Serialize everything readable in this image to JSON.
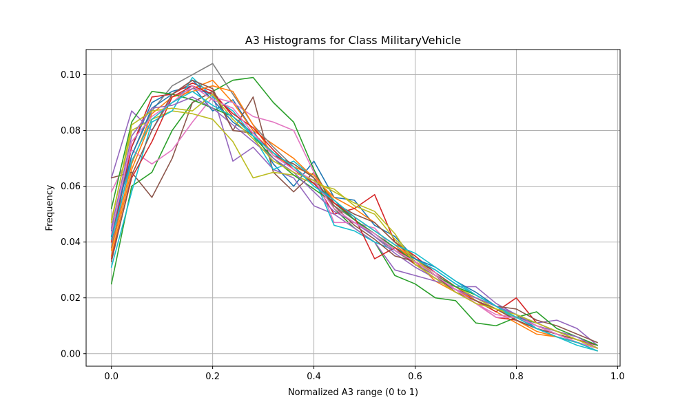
{
  "chart_data": {
    "type": "line",
    "title": "A3 Histograms for Class MilitaryVehicle",
    "xlabel": "Normalized A3 range (0 to 1)",
    "ylabel": "Frequency",
    "xlim": [
      -0.05,
      1.005
    ],
    "ylim": [
      -0.0045,
      0.109
    ],
    "x_ticks": [
      0.0,
      0.2,
      0.4,
      0.6,
      0.8,
      1.0
    ],
    "x_tick_labels": [
      "0.0",
      "0.2",
      "0.4",
      "0.6",
      "0.8",
      "1.0"
    ],
    "y_ticks": [
      0.0,
      0.02,
      0.04,
      0.06,
      0.08,
      0.1
    ],
    "y_tick_labels": [
      "0.00",
      "0.02",
      "0.04",
      "0.06",
      "0.08",
      "0.10"
    ],
    "grid": true,
    "x": [
      0.0,
      0.04,
      0.08,
      0.12,
      0.16,
      0.2,
      0.24,
      0.28,
      0.32,
      0.36,
      0.4,
      0.44,
      0.48,
      0.52,
      0.56,
      0.6,
      0.64,
      0.68,
      0.72,
      0.76,
      0.8,
      0.84,
      0.88,
      0.92,
      0.96
    ],
    "series": [
      {
        "color": "#1f77b4",
        "values": [
          0.042,
          0.074,
          0.09,
          0.094,
          0.096,
          0.087,
          0.091,
          0.08,
          0.068,
          0.06,
          0.069,
          0.056,
          0.055,
          0.046,
          0.042,
          0.034,
          0.03,
          0.025,
          0.021,
          0.017,
          0.013,
          0.01,
          0.007,
          0.004,
          0.002
        ]
      },
      {
        "color": "#ff7f0e",
        "values": [
          0.035,
          0.066,
          0.084,
          0.09,
          0.095,
          0.098,
          0.09,
          0.08,
          0.075,
          0.07,
          0.063,
          0.056,
          0.052,
          0.047,
          0.04,
          0.033,
          0.026,
          0.022,
          0.019,
          0.015,
          0.011,
          0.007,
          0.006,
          0.004,
          0.002
        ]
      },
      {
        "color": "#2ca02c",
        "values": [
          0.025,
          0.06,
          0.065,
          0.08,
          0.09,
          0.094,
          0.098,
          0.099,
          0.09,
          0.083,
          0.066,
          0.052,
          0.045,
          0.04,
          0.028,
          0.025,
          0.02,
          0.019,
          0.011,
          0.01,
          0.013,
          0.011,
          0.008,
          0.006,
          0.003
        ]
      },
      {
        "color": "#d62728",
        "values": [
          0.04,
          0.074,
          0.092,
          0.093,
          0.097,
          0.094,
          0.085,
          0.079,
          0.072,
          0.066,
          0.062,
          0.05,
          0.052,
          0.057,
          0.04,
          0.035,
          0.029,
          0.024,
          0.019,
          0.015,
          0.02,
          0.011,
          0.008,
          0.005,
          0.003
        ]
      },
      {
        "color": "#9467bd",
        "values": [
          0.063,
          0.087,
          0.08,
          0.092,
          0.095,
          0.093,
          0.069,
          0.074,
          0.066,
          0.063,
          0.053,
          0.05,
          0.045,
          0.04,
          0.03,
          0.028,
          0.026,
          0.024,
          0.024,
          0.018,
          0.014,
          0.011,
          0.012,
          0.009,
          0.003
        ]
      },
      {
        "color": "#8c564b",
        "values": [
          0.063,
          0.065,
          0.056,
          0.07,
          0.09,
          0.094,
          0.08,
          0.092,
          0.065,
          0.058,
          0.065,
          0.054,
          0.05,
          0.047,
          0.04,
          0.034,
          0.029,
          0.024,
          0.02,
          0.017,
          0.016,
          0.012,
          0.01,
          0.007,
          0.004
        ]
      },
      {
        "color": "#e377c2",
        "values": [
          0.058,
          0.073,
          0.068,
          0.073,
          0.083,
          0.092,
          0.09,
          0.085,
          0.083,
          0.08,
          0.065,
          0.047,
          0.047,
          0.045,
          0.037,
          0.033,
          0.029,
          0.022,
          0.018,
          0.014,
          0.013,
          0.01,
          0.007,
          0.004,
          0.002
        ]
      },
      {
        "color": "#7f7f7f",
        "values": [
          0.038,
          0.071,
          0.087,
          0.096,
          0.1,
          0.104,
          0.093,
          0.082,
          0.074,
          0.067,
          0.061,
          0.053,
          0.048,
          0.042,
          0.037,
          0.032,
          0.028,
          0.023,
          0.019,
          0.016,
          0.012,
          0.009,
          0.006,
          0.004,
          0.002
        ]
      },
      {
        "color": "#bcbd22",
        "values": [
          0.048,
          0.08,
          0.084,
          0.087,
          0.086,
          0.084,
          0.076,
          0.063,
          0.065,
          0.064,
          0.061,
          0.059,
          0.053,
          0.05,
          0.041,
          0.034,
          0.028,
          0.024,
          0.02,
          0.016,
          0.013,
          0.01,
          0.007,
          0.005,
          0.002
        ]
      },
      {
        "color": "#17becf",
        "values": [
          0.031,
          0.058,
          0.083,
          0.087,
          0.099,
          0.092,
          0.087,
          0.078,
          0.066,
          0.069,
          0.063,
          0.046,
          0.044,
          0.04,
          0.037,
          0.034,
          0.03,
          0.025,
          0.021,
          0.017,
          0.012,
          0.009,
          0.006,
          0.003,
          0.001
        ]
      },
      {
        "color": "#1f77b4",
        "values": [
          0.044,
          0.071,
          0.088,
          0.093,
          0.098,
          0.091,
          0.083,
          0.078,
          0.072,
          0.066,
          0.061,
          0.055,
          0.048,
          0.043,
          0.038,
          0.034,
          0.031,
          0.026,
          0.022,
          0.017,
          0.014,
          0.009,
          0.006,
          0.004,
          0.002
        ]
      },
      {
        "color": "#ff7f0e",
        "values": [
          0.037,
          0.068,
          0.086,
          0.092,
          0.094,
          0.096,
          0.094,
          0.082,
          0.071,
          0.067,
          0.064,
          0.055,
          0.049,
          0.044,
          0.039,
          0.033,
          0.028,
          0.023,
          0.019,
          0.016,
          0.012,
          0.008,
          0.006,
          0.004,
          0.001
        ]
      },
      {
        "color": "#2ca02c",
        "values": [
          0.052,
          0.083,
          0.094,
          0.093,
          0.091,
          0.088,
          0.085,
          0.078,
          0.07,
          0.064,
          0.059,
          0.054,
          0.048,
          0.043,
          0.038,
          0.033,
          0.028,
          0.024,
          0.021,
          0.017,
          0.013,
          0.015,
          0.009,
          0.006,
          0.003
        ]
      },
      {
        "color": "#d62728",
        "values": [
          0.034,
          0.063,
          0.076,
          0.092,
          0.096,
          0.093,
          0.086,
          0.081,
          0.073,
          0.066,
          0.061,
          0.054,
          0.049,
          0.034,
          0.038,
          0.032,
          0.027,
          0.023,
          0.018,
          0.013,
          0.012,
          0.009,
          0.007,
          0.004,
          0.002
        ]
      },
      {
        "color": "#9467bd",
        "values": [
          0.045,
          0.078,
          0.088,
          0.089,
          0.092,
          0.088,
          0.082,
          0.076,
          0.07,
          0.065,
          0.058,
          0.051,
          0.047,
          0.042,
          0.036,
          0.031,
          0.027,
          0.023,
          0.02,
          0.017,
          0.014,
          0.01,
          0.008,
          0.006,
          0.002
        ]
      },
      {
        "color": "#8c564b",
        "values": [
          0.033,
          0.064,
          0.08,
          0.093,
          0.098,
          0.095,
          0.08,
          0.079,
          0.071,
          0.068,
          0.063,
          0.053,
          0.046,
          0.041,
          0.035,
          0.033,
          0.028,
          0.022,
          0.019,
          0.016,
          0.012,
          0.009,
          0.007,
          0.005,
          0.002
        ]
      },
      {
        "color": "#e377c2",
        "values": [
          0.043,
          0.076,
          0.085,
          0.09,
          0.096,
          0.091,
          0.088,
          0.079,
          0.071,
          0.066,
          0.062,
          0.052,
          0.047,
          0.043,
          0.037,
          0.033,
          0.028,
          0.023,
          0.018,
          0.013,
          0.013,
          0.01,
          0.007,
          0.004,
          0.002
        ]
      },
      {
        "color": "#bcbd22",
        "values": [
          0.047,
          0.082,
          0.087,
          0.088,
          0.087,
          0.093,
          0.084,
          0.077,
          0.069,
          0.065,
          0.062,
          0.058,
          0.054,
          0.051,
          0.043,
          0.032,
          0.027,
          0.022,
          0.018,
          0.016,
          0.014,
          0.011,
          0.008,
          0.005,
          0.002
        ]
      },
      {
        "color": "#17becf",
        "values": [
          0.041,
          0.069,
          0.084,
          0.09,
          0.094,
          0.089,
          0.085,
          0.078,
          0.072,
          0.067,
          0.06,
          0.055,
          0.049,
          0.044,
          0.039,
          0.036,
          0.031,
          0.026,
          0.021,
          0.017,
          0.013,
          0.009,
          0.006,
          0.004,
          0.001
        ]
      }
    ]
  }
}
